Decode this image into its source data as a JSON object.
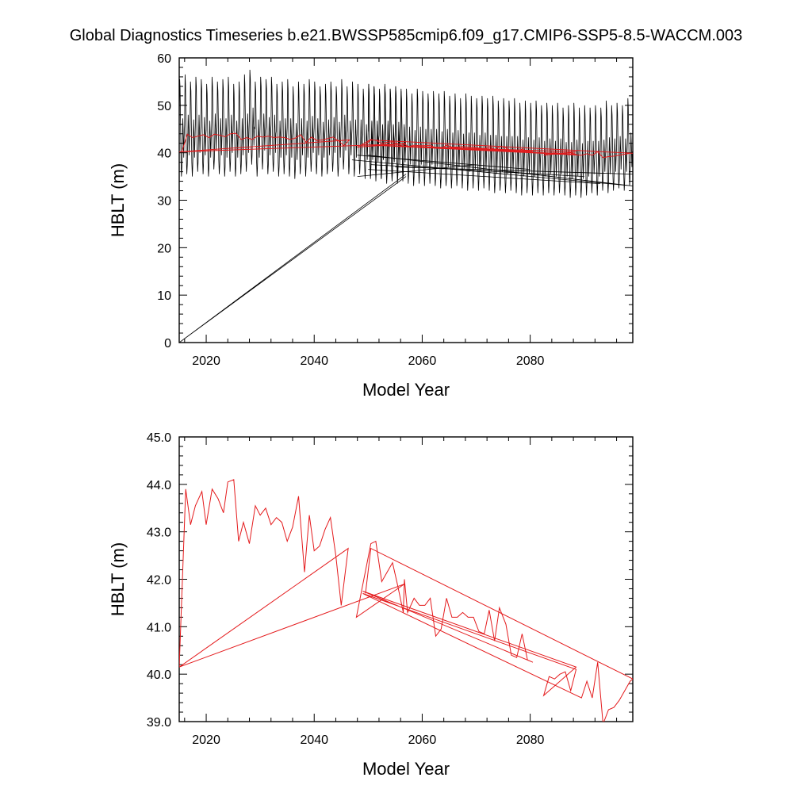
{
  "title": "Global Diagnostics Timeseries b.e21.BWSSP585cmip6.f09_g17.CMIP6-SSP5-8.5-WACCM.003",
  "colors": {
    "black_series": "#000000",
    "red_series": "#e41a1c",
    "axes": "#000000"
  },
  "chart_data": [
    {
      "type": "line",
      "xlabel": "Model Year",
      "ylabel": "HBLT (m)",
      "xlim": [
        2015,
        2099
      ],
      "ylim": [
        0,
        60
      ],
      "x_ticks": [
        2020,
        2040,
        2060,
        2080
      ],
      "y_ticks": [
        0,
        10,
        20,
        30,
        40,
        50,
        60
      ],
      "y_tick_labels": [
        "0",
        "10",
        "20",
        "30",
        "40",
        "50",
        "60"
      ],
      "grid": false,
      "series": [
        {
          "style": "monthly-cycle",
          "color": "black",
          "segments": [
            {
              "from": 2015.0,
              "to": 2057.0,
              "max": [
                55.5,
                56.5,
                55.0,
                56.0,
                55.5,
                54.5,
                56.0,
                55.0,
                55.5,
                56.0,
                54.5,
                55.0,
                56.5,
                57.5,
                55.0,
                56.0,
                55.5,
                56.0,
                54.5,
                55.0,
                55.5,
                54.0,
                55.0,
                54.5,
                55.5,
                55.0,
                54.0,
                54.5,
                55.0,
                54.0,
                55.5,
                54.0,
                55.0,
                54.5,
                53.5,
                54.5,
                54.0,
                53.0,
                54.0,
                53.5,
                54.0,
                53.5
              ],
              "min": [
                35.0,
                35.5,
                35.0,
                36.0,
                35.5,
                35.0,
                36.5,
                35.5,
                35.0,
                36.0,
                35.0,
                35.5,
                36.0,
                37.5,
                35.0,
                36.5,
                35.5,
                36.0,
                35.0,
                35.5,
                35.0,
                34.5,
                35.5,
                35.0,
                36.0,
                35.5,
                35.0,
                35.5,
                36.0,
                35.0,
                36.5,
                35.5,
                35.0,
                35.5,
                34.5,
                35.0,
                35.5,
                34.5,
                35.5,
                34.5,
                35.0,
                34.5
              ]
            },
            {
              "from": 2050.0,
              "to": 2099.0,
              "max": [
                54.5,
                54.0,
                53.5,
                54.5,
                53.5,
                54.0,
                53.0,
                53.5,
                52.5,
                53.5,
                53.0,
                52.5,
                53.0,
                52.5,
                53.0,
                52.0,
                52.5,
                51.5,
                52.5,
                52.0,
                51.5,
                52.0,
                51.5,
                52.0,
                51.0,
                51.5,
                51.0,
                51.5,
                50.5,
                51.0,
                50.5,
                51.0,
                50.0,
                50.5,
                50.0,
                50.5,
                49.5,
                50.0,
                50.5,
                49.5,
                50.0,
                49.5,
                50.0,
                49.5,
                51.0,
                50.0,
                50.5,
                50.0,
                51.5
              ],
              "min": [
                34.5,
                34.0,
                34.5,
                33.5,
                34.0,
                33.5,
                34.0,
                33.5,
                33.0,
                33.5,
                33.0,
                33.5,
                33.0,
                32.5,
                33.0,
                32.5,
                33.0,
                32.5,
                32.0,
                32.5,
                32.0,
                32.5,
                32.0,
                31.5,
                32.0,
                31.5,
                32.0,
                31.5,
                31.0,
                31.5,
                31.0,
                31.5,
                31.0,
                31.5,
                31.0,
                31.5,
                31.0,
                30.5,
                31.0,
                30.5,
                31.0,
                31.5,
                31.0,
                32.0,
                31.5,
                32.0,
                32.5,
                32.0,
                33.0
              ]
            }
          ],
          "jumps": [
            {
              "x": [
                2057.0,
                2015.0,
                2057.0
              ],
              "y": [
                35.0,
                0.0,
                35.5
              ]
            },
            {
              "x": [
                2047.0,
                2099.0,
                2050.0
              ],
              "y": [
                38.5,
                33.0,
                39.5
              ]
            },
            {
              "x": [
                2050.0,
                2093.0
              ],
              "y": [
                36.5,
                33.5
              ]
            },
            {
              "x": [
                2050.5,
                2090.0
              ],
              "y": [
                37.5,
                35.0
              ]
            },
            {
              "x": [
                2055.0,
                2099.0
              ],
              "y": [
                37.0,
                35.5
              ]
            },
            {
              "x": [
                2048.0,
                2080.0
              ],
              "y": [
                39.5,
                36.5
              ]
            },
            {
              "x": [
                2048.0,
                2070.0
              ],
              "y": [
                35.0,
                37.5
              ]
            }
          ]
        },
        {
          "style": "annual-mean",
          "color": "red",
          "x": [
            2015.5,
            2016.5,
            2017.5,
            2018.5,
            2019.5,
            2020.5,
            2021.5,
            2022.5,
            2023.5,
            2024.5,
            2025.5,
            2026.5,
            2027.5,
            2028.5,
            2029.5,
            2030.5,
            2031.5,
            2032.5,
            2033.5,
            2034.5,
            2035.5,
            2036.5,
            2037.5,
            2038.5,
            2039.5,
            2040.5,
            2041.5,
            2042.5,
            2043.5,
            2044.5,
            2045.5,
            2046.5,
            2015.0,
            2057.0,
            2048.0,
            2050.5,
            2051.5,
            2052.5,
            2053.5,
            2054.5,
            2055.5,
            2056.5,
            2056.5,
            2057.5,
            2058.5,
            2059.5,
            2060.5,
            2061.5,
            2062.5,
            2063.5,
            2064.5,
            2065.5,
            2066.5,
            2067.5,
            2068.5,
            2069.5,
            2070.5,
            2071.5,
            2072.5,
            2073.5,
            2074.5,
            2075.5,
            2076.5,
            2077.5,
            2078.5,
            2079.5,
            2080.5,
            2049.0,
            2088.5,
            2082.5,
            2083.5,
            2084.5,
            2085.5,
            2086.5,
            2087.5,
            2088.5,
            2049.0,
            2089.5,
            2090.5,
            2091.5,
            2092.5,
            2093.5,
            2094.5,
            2095.5,
            2096.5,
            2097.5,
            2098.5,
            2099.0,
            2050.5,
            2049.5
          ],
          "y": [
            40.2,
            43.9,
            43.2,
            43.5,
            43.8,
            43.2,
            43.9,
            43.7,
            43.4,
            44.0,
            44.1,
            42.8,
            43.2,
            42.8,
            43.5,
            43.3,
            43.5,
            43.2,
            43.3,
            43.2,
            42.8,
            43.1,
            43.8,
            42.2,
            43.3,
            42.6,
            42.7,
            43.0,
            43.3,
            42.5,
            41.5,
            42.7,
            40.2,
            41.9,
            41.2,
            42.8,
            42.6,
            42.0,
            42.2,
            42.3,
            41.9,
            41.3,
            42.0,
            41.3,
            41.6,
            41.5,
            41.5,
            41.6,
            41.0,
            40.9,
            41.6,
            41.2,
            41.2,
            41.3,
            41.2,
            41.2,
            41.0,
            40.9,
            41.2,
            40.7,
            41.4,
            41.0,
            40.4,
            40.3,
            40.8,
            40.3,
            40.3,
            41.7,
            40.2,
            39.5,
            39.9,
            40.0,
            39.9,
            40.0,
            40.0,
            39.7,
            41.7,
            39.5,
            39.8,
            39.5,
            40.2,
            39.0,
            39.2,
            39.3,
            39.5,
            39.7,
            39.9,
            39.9,
            42.7,
            41.7
          ]
        }
      ]
    },
    {
      "type": "line",
      "xlabel": "Model Year",
      "ylabel": "HBLT (m)",
      "xlim": [
        2015,
        2099
      ],
      "ylim": [
        39,
        45
      ],
      "x_ticks": [
        2020,
        2040,
        2060,
        2080
      ],
      "y_ticks": [
        39,
        40,
        41,
        42,
        43,
        44,
        45
      ],
      "y_tick_labels": [
        "39.0",
        "40.0",
        "41.0",
        "42.0",
        "43.0",
        "44.0",
        "45.0"
      ],
      "grid": false,
      "series": [
        {
          "style": "annual-mean",
          "color": "red",
          "x": [
            2015.0,
            2016.2,
            2017.1,
            2018.0,
            2019.2,
            2020.0,
            2021.1,
            2022.2,
            2023.2,
            2024.0,
            2025.1,
            2026.0,
            2026.9,
            2028.0,
            2029.1,
            2030.0,
            2031.0,
            2032.0,
            2033.0,
            2034.0,
            2035.0,
            2036.0,
            2037.1,
            2038.2,
            2039.1,
            2040.0,
            2041.0,
            2042.0,
            2043.0,
            2044.0,
            2045.0,
            2046.3,
            2015.0,
            2056.7,
            2047.8,
            2050.5,
            2051.4,
            2052.5,
            2053.5,
            2054.5,
            2055.4,
            2056.5,
            2056.7,
            2057.3,
            2058.5,
            2059.5,
            2060.5,
            2061.5,
            2062.5,
            2063.5,
            2064.5,
            2065.5,
            2066.5,
            2067.5,
            2068.5,
            2069.5,
            2070.5,
            2071.5,
            2072.4,
            2073.4,
            2074.3,
            2075.5,
            2076.5,
            2077.5,
            2078.5,
            2079.5,
            2080.5,
            2049.0,
            2088.5,
            2082.5,
            2083.5,
            2084.5,
            2085.5,
            2086.5,
            2087.5,
            2088.5,
            2049.0,
            2089.5,
            2090.5,
            2091.5,
            2092.5,
            2093.5,
            2094.5,
            2095.5,
            2096.5,
            2097.5,
            2098.5,
            2099.0,
            2050.5,
            2049.5
          ],
          "y": [
            40.15,
            43.9,
            43.15,
            43.55,
            43.85,
            43.15,
            43.9,
            43.7,
            43.4,
            44.05,
            44.1,
            42.8,
            43.2,
            42.75,
            43.55,
            43.35,
            43.5,
            43.15,
            43.3,
            43.2,
            42.8,
            43.1,
            43.75,
            42.15,
            43.35,
            42.6,
            42.7,
            43.05,
            43.3,
            42.5,
            41.45,
            42.65,
            40.15,
            41.9,
            41.2,
            42.75,
            42.8,
            41.95,
            42.15,
            42.35,
            41.9,
            41.3,
            42.0,
            41.3,
            41.6,
            41.45,
            41.45,
            41.6,
            40.8,
            40.95,
            41.6,
            41.2,
            41.2,
            41.3,
            41.2,
            41.2,
            40.9,
            40.85,
            41.35,
            40.7,
            41.4,
            41.05,
            40.4,
            40.35,
            40.85,
            40.3,
            40.25,
            41.75,
            40.15,
            39.55,
            39.95,
            39.9,
            40.0,
            40.05,
            39.65,
            40.1,
            41.7,
            39.5,
            39.85,
            39.5,
            40.25,
            38.95,
            39.25,
            39.3,
            39.45,
            39.65,
            39.85,
            39.9,
            42.65,
            41.7
          ]
        }
      ]
    }
  ]
}
